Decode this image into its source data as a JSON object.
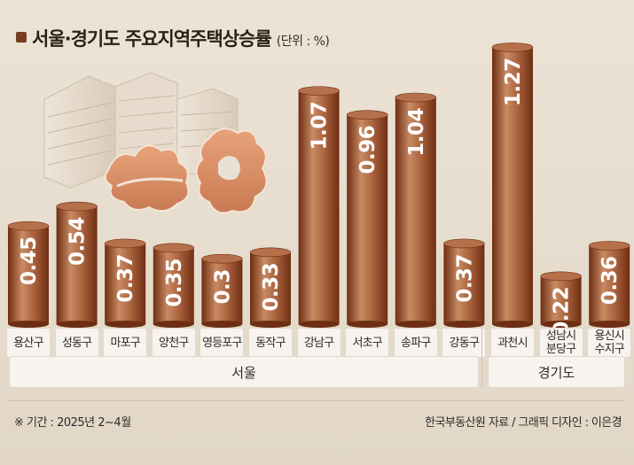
{
  "header": {
    "title": "서울·경기도 주요지역주택상승률",
    "unit": "(단위 : %)"
  },
  "chart_data": {
    "type": "bar",
    "categories": [
      "용산구",
      "성동구",
      "마포구",
      "양천구",
      "영등포구",
      "동작구",
      "강남구",
      "서초구",
      "송파구",
      "강동구",
      "과천시",
      "성남시 분당구",
      "용신시 수지구"
    ],
    "values": [
      0.45,
      0.54,
      0.37,
      0.35,
      0.3,
      0.33,
      1.07,
      0.96,
      1.04,
      0.37,
      1.27,
      0.22,
      0.36
    ],
    "value_labels": [
      "0.45",
      "0.54",
      "0.37",
      "0.35",
      "0.3",
      "0.33",
      "1.07",
      "0.96",
      "1.04",
      "0.37",
      "1.27",
      "0.22",
      "0.36"
    ],
    "groups": [
      {
        "name": "서울",
        "categories": [
          "용산구",
          "성동구",
          "마포구",
          "양천구",
          "영등포구",
          "동작구",
          "강남구",
          "서초구",
          "송파구",
          "강동구"
        ]
      },
      {
        "name": "경기도",
        "categories": [
          "과천시",
          "성남시 분당구",
          "용신시 수지구"
        ]
      }
    ],
    "ylim": [
      0,
      1.3
    ],
    "grid": false,
    "legend": "none"
  },
  "colors": {
    "bar_dark": "#6e2e14",
    "bar_mid": "#a8603b",
    "bar_light": "#c98a63",
    "bar_top": "#b5704a"
  },
  "footer": {
    "note": "※ 기간 : 2025년 2~4월",
    "source": "한국부동산원 자료 / 그래픽 디자인 : 이은경"
  },
  "illustration": {
    "icon": "apartment-buildings-and-map-icon"
  }
}
